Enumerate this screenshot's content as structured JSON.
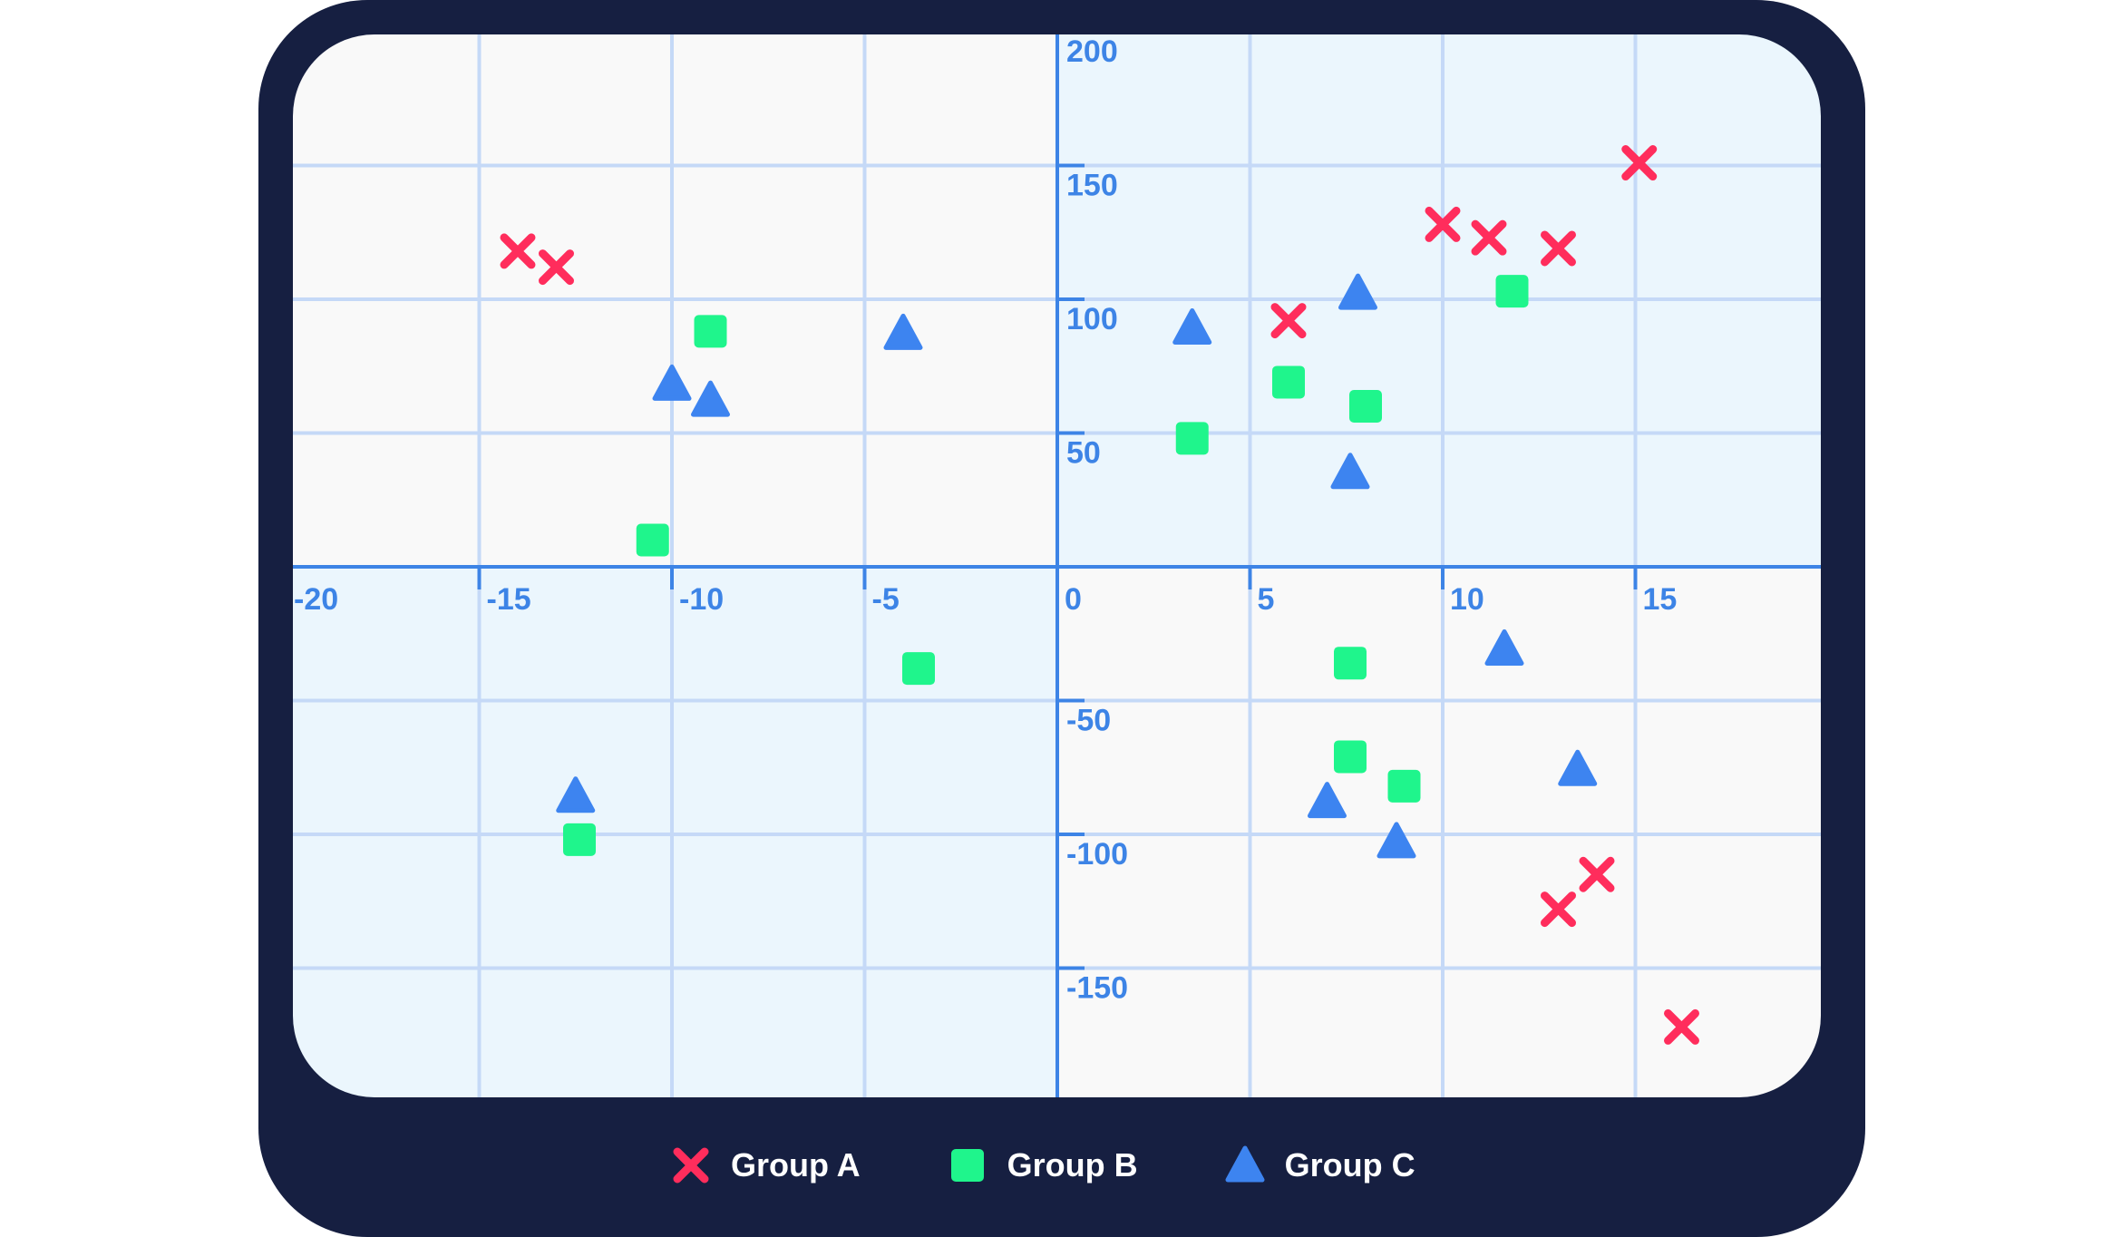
{
  "chart_data": {
    "type": "scatter",
    "title": "",
    "xlabel": "",
    "ylabel": "",
    "xlim": [
      -20,
      20
    ],
    "ylim": [
      -200,
      200
    ],
    "x_ticks": [
      -20,
      -15,
      -10,
      -5,
      0,
      5,
      10,
      15
    ],
    "y_ticks": [
      200,
      150,
      100,
      50,
      -50,
      -100,
      -150
    ],
    "grid": true,
    "legend_position": "bottom",
    "colors": {
      "frame": "#161f41",
      "axis": "#3d84e6",
      "grid": "#c5d9f7",
      "quadrant_light": "#f9f9f9",
      "quadrant_blue": "#ebf6fd",
      "Group A": "#ff2d5c",
      "Group B": "#1ff58c",
      "Group C": "#3d84f0"
    },
    "series": [
      {
        "name": "Group A",
        "marker": "x-icon",
        "points": [
          [
            -14.0,
            118
          ],
          [
            -13.0,
            112
          ],
          [
            6.0,
            92
          ],
          [
            10.0,
            128
          ],
          [
            11.2,
            123
          ],
          [
            13.0,
            119
          ],
          [
            15.1,
            151
          ],
          [
            14.0,
            -115
          ],
          [
            13.0,
            -128
          ],
          [
            16.2,
            -172
          ]
        ]
      },
      {
        "name": "Group B",
        "marker": "square-icon",
        "points": [
          [
            -9.0,
            88
          ],
          [
            -10.5,
            10
          ],
          [
            -3.6,
            -38
          ],
          [
            -12.4,
            -102
          ],
          [
            3.5,
            48
          ],
          [
            6.0,
            69
          ],
          [
            8.0,
            60
          ],
          [
            11.8,
            103
          ],
          [
            7.6,
            -36
          ],
          [
            7.6,
            -71
          ],
          [
            9.0,
            -82
          ]
        ]
      },
      {
        "name": "Group C",
        "marker": "triangle-icon",
        "points": [
          [
            -4.0,
            87
          ],
          [
            -10.0,
            68
          ],
          [
            -9.0,
            62
          ],
          [
            -12.5,
            -86
          ],
          [
            3.5,
            89
          ],
          [
            7.8,
            102
          ],
          [
            7.6,
            35
          ],
          [
            11.6,
            -31
          ],
          [
            13.5,
            -76
          ],
          [
            7.0,
            -88
          ],
          [
            8.8,
            -103
          ]
        ]
      }
    ]
  }
}
